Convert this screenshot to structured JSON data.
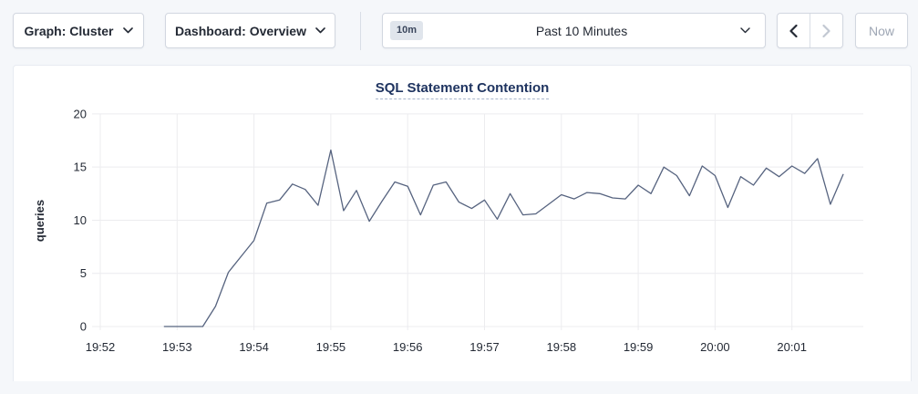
{
  "toolbar": {
    "graph_dropdown_label": "Graph: Cluster",
    "dashboard_dropdown_label": "Dashboard: Overview",
    "time_selector": {
      "badge": "10m",
      "label": "Past 10 Minutes"
    },
    "now_button_label": "Now",
    "icons": {
      "graph_dropdown": "chevron-down-icon",
      "dashboard_dropdown": "chevron-down-icon",
      "time_selector": "chevron-down-icon",
      "prev": "chevron-left-icon",
      "next": "chevron-right-icon"
    }
  },
  "colors": {
    "page_bg": "#f5f7fa",
    "panel_bg": "#ffffff",
    "panel_border": "#e7ebf1",
    "control_border": "#d2d7e0",
    "text_dark": "#242a35",
    "disabled_icon": "#c2c8d2",
    "now_text": "#9ea6b4",
    "badge_bg": "#e0e5ec",
    "title_text": "#1f3460",
    "grid_line": "#ececef",
    "series_line": "#56637f"
  },
  "chart_data": {
    "type": "line",
    "title": "SQL Statement Contention",
    "ylabel": "queries",
    "ylim": [
      0,
      20
    ],
    "yticks": [
      0,
      5,
      10,
      15,
      20
    ],
    "grid": true,
    "legend": "none",
    "x_axis_start": "19:52:00",
    "x_tick_labels": [
      "19:52",
      "19:53",
      "19:54",
      "19:55",
      "19:56",
      "19:57",
      "19:58",
      "19:59",
      "20:00",
      "20:01"
    ],
    "series": [
      {
        "name": "queries",
        "color": "#56637f",
        "points": [
          [
            "19:52:50",
            0
          ],
          [
            "19:53:00",
            0
          ],
          [
            "19:53:10",
            0
          ],
          [
            "19:53:20",
            0
          ],
          [
            "19:53:30",
            1.9
          ],
          [
            "19:53:40",
            5.1
          ],
          [
            "19:53:50",
            6.6
          ],
          [
            "19:54:00",
            8.1
          ],
          [
            "19:54:10",
            11.6
          ],
          [
            "19:54:20",
            11.9
          ],
          [
            "19:54:30",
            13.4
          ],
          [
            "19:54:40",
            12.9
          ],
          [
            "19:54:50",
            11.4
          ],
          [
            "19:55:00",
            16.6
          ],
          [
            "19:55:10",
            10.9
          ],
          [
            "19:55:20",
            12.8
          ],
          [
            "19:55:30",
            9.9
          ],
          [
            "19:55:40",
            11.8
          ],
          [
            "19:55:50",
            13.6
          ],
          [
            "19:56:00",
            13.2
          ],
          [
            "19:56:10",
            10.5
          ],
          [
            "19:56:20",
            13.3
          ],
          [
            "19:56:30",
            13.6
          ],
          [
            "19:56:40",
            11.7
          ],
          [
            "19:56:50",
            11.1
          ],
          [
            "19:57:00",
            11.9
          ],
          [
            "19:57:10",
            10.1
          ],
          [
            "19:57:20",
            12.5
          ],
          [
            "19:57:30",
            10.5
          ],
          [
            "19:57:40",
            10.6
          ],
          [
            "19:57:50",
            11.5
          ],
          [
            "19:58:00",
            12.4
          ],
          [
            "19:58:10",
            12.0
          ],
          [
            "19:58:20",
            12.6
          ],
          [
            "19:58:30",
            12.5
          ],
          [
            "19:58:40",
            12.1
          ],
          [
            "19:58:50",
            12.0
          ],
          [
            "19:59:00",
            13.3
          ],
          [
            "19:59:10",
            12.5
          ],
          [
            "19:59:20",
            15.0
          ],
          [
            "19:59:30",
            14.2
          ],
          [
            "19:59:40",
            12.3
          ],
          [
            "19:59:50",
            15.1
          ],
          [
            "20:00:00",
            14.2
          ],
          [
            "20:00:10",
            11.2
          ],
          [
            "20:00:20",
            14.1
          ],
          [
            "20:00:30",
            13.3
          ],
          [
            "20:00:40",
            14.9
          ],
          [
            "20:00:50",
            14.1
          ],
          [
            "20:01:00",
            15.1
          ],
          [
            "20:01:10",
            14.4
          ],
          [
            "20:01:20",
            15.8
          ],
          [
            "20:01:30",
            11.5
          ],
          [
            "20:01:40",
            14.3
          ]
        ]
      }
    ]
  }
}
